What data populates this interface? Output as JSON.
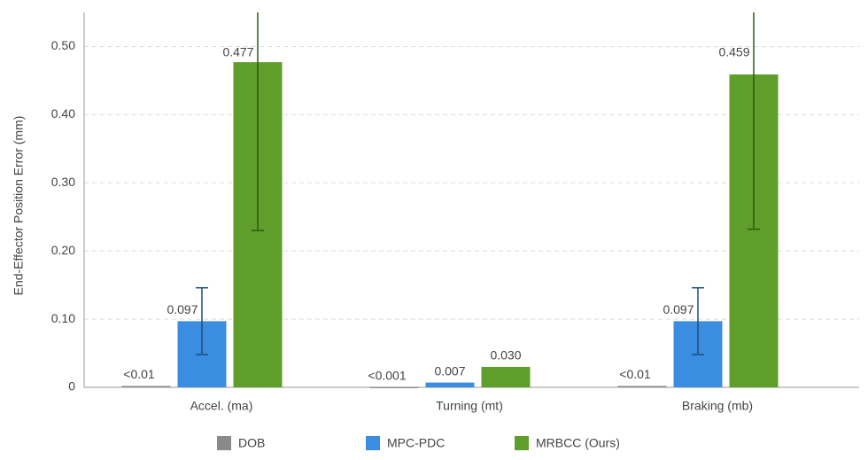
{
  "chart_data": {
    "type": "bar",
    "y_label": "End-Effector Position Error (mm)",
    "categories": [
      "Accel. (ma)",
      "Turning (mt)",
      "Braking (mb)"
    ],
    "series": [
      {
        "name": "DOB",
        "color": "#8a8a8a",
        "label_color": "#555555",
        "values": [
          0.002,
          0.0005,
          0.002
        ],
        "value_labels": [
          "<0.01",
          "<0.001",
          "<0.01"
        ],
        "errors": [
          null,
          null,
          null
        ]
      },
      {
        "name": "MPC-PDC",
        "color": "#3a8de0",
        "label_color": "#1f5a9a",
        "values": [
          0.097,
          0.007,
          0.097
        ],
        "value_labels": [
          "0.097",
          "0.007",
          "0.097"
        ],
        "errors": [
          0.049,
          null,
          0.049
        ]
      },
      {
        "name": "MRBCC (Ours)",
        "color": "#5f9e2a",
        "label_color": "#3f6e1a",
        "values": [
          0.477,
          0.03,
          0.459
        ],
        "value_labels": [
          "0.477",
          "0.030",
          "0.459"
        ],
        "errors": [
          0.247,
          null,
          0.227
        ]
      }
    ],
    "ylim": [
      0,
      0.55
    ],
    "yticks": [
      0,
      {
        "value": 0.1,
        "label": "0.10"
      },
      {
        "value": 0.2,
        "label": "0.20"
      },
      {
        "value": 0.3,
        "label": "0.30"
      },
      {
        "value": 0.4,
        "label": "0.40"
      },
      {
        "value": 0.5,
        "label": "0.50"
      }
    ],
    "grid": true
  }
}
